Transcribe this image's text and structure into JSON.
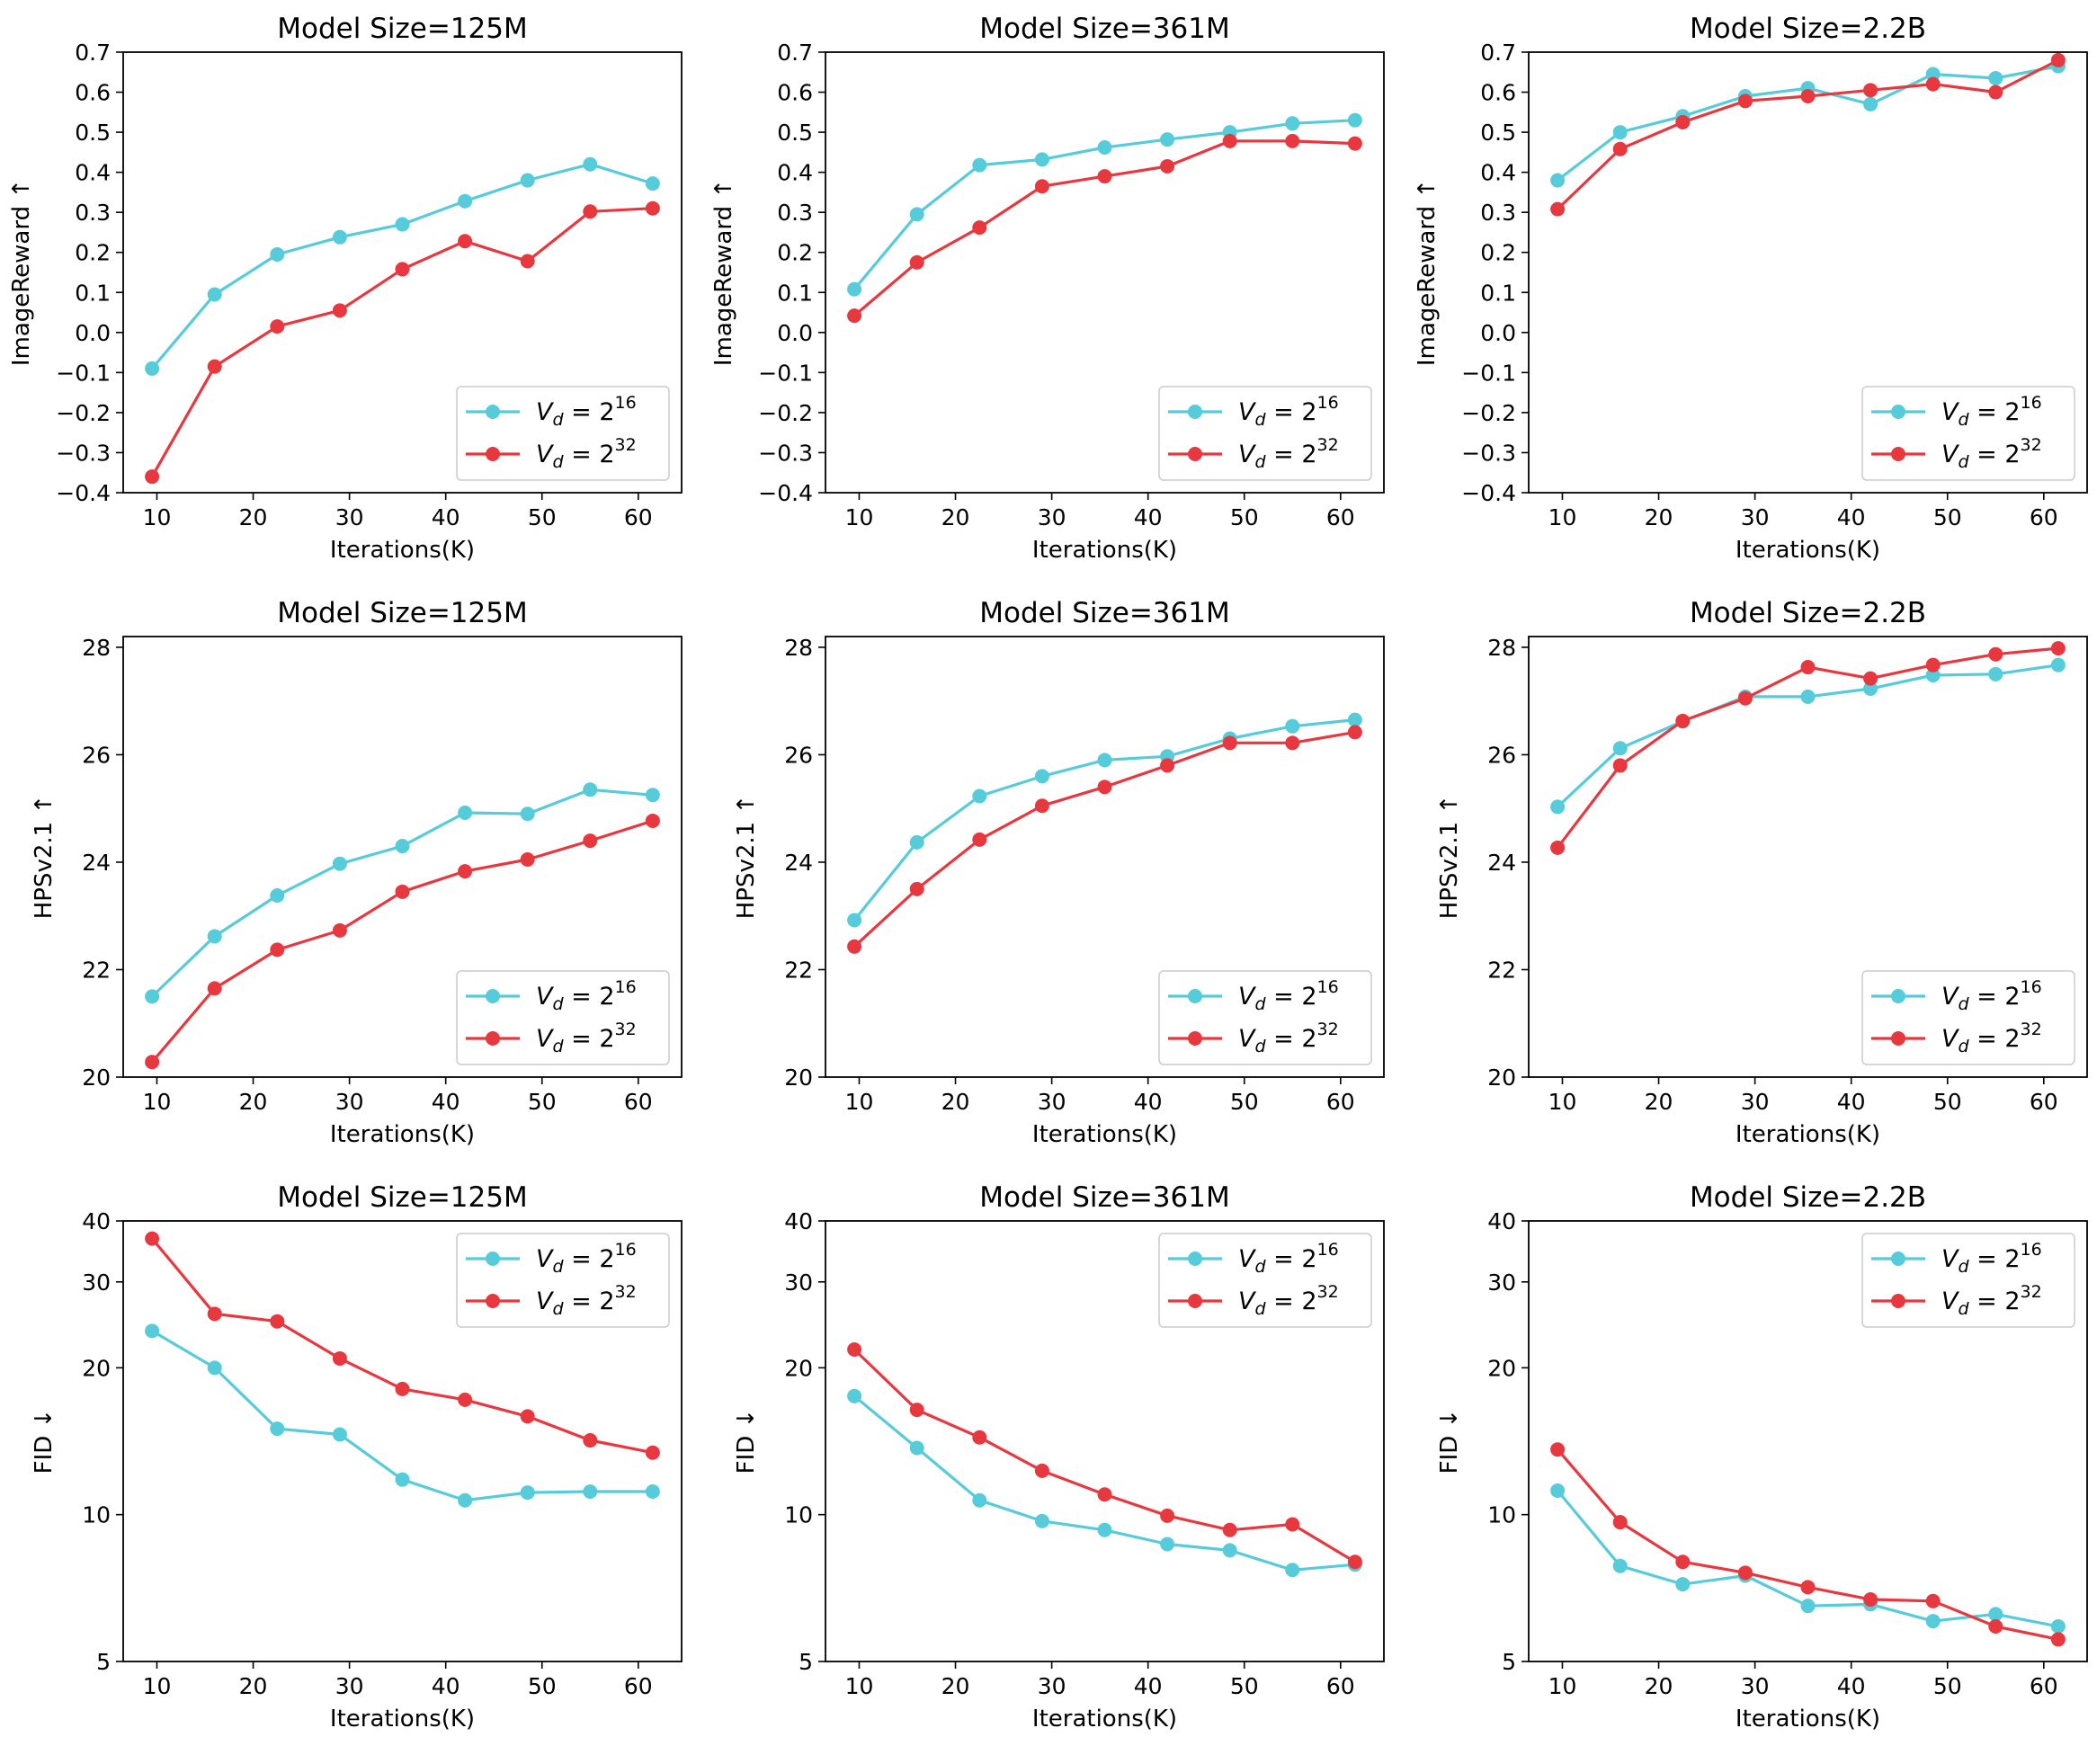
{
  "colors": {
    "cyan": "#56cbd9",
    "red": "#e8383f"
  },
  "chart_data": [
    {
      "type": "line",
      "row": 0,
      "col": 0,
      "title": "Model Size=125M",
      "xlabel": "Iterations(K)",
      "ylabel": "ImageReward ↑",
      "yscale": "linear",
      "ylim": [
        -0.4,
        0.7
      ],
      "xlim": [
        6.5,
        64.5
      ],
      "xticks": [
        10,
        20,
        30,
        40,
        50,
        60
      ],
      "yticks": [
        -0.4,
        -0.3,
        -0.2,
        -0.1,
        0.0,
        0.1,
        0.2,
        0.3,
        0.4,
        0.5,
        0.6,
        0.7
      ],
      "ytick_labels": [
        "−0.4",
        "−0.3",
        "−0.2",
        "−0.1",
        "0.0",
        "0.1",
        "0.2",
        "0.3",
        "0.4",
        "0.5",
        "0.6",
        "0.7"
      ],
      "legend_loc": "lower-right",
      "x": [
        9.5,
        16,
        22.5,
        29,
        35.5,
        42,
        48.5,
        55,
        61.5
      ],
      "series": [
        {
          "name": "V_d = 2^16",
          "color": "#56cbd9",
          "values": [
            -0.09,
            0.095,
            0.195,
            0.238,
            0.27,
            0.328,
            0.38,
            0.42,
            0.372
          ]
        },
        {
          "name": "V_d = 2^32",
          "color": "#e8383f",
          "values": [
            -0.36,
            -0.085,
            0.015,
            0.055,
            0.158,
            0.228,
            0.178,
            0.302,
            0.31
          ]
        }
      ]
    },
    {
      "type": "line",
      "row": 0,
      "col": 1,
      "title": "Model Size=361M",
      "xlabel": "Iterations(K)",
      "ylabel": "ImageReward ↑",
      "yscale": "linear",
      "ylim": [
        -0.4,
        0.7
      ],
      "xlim": [
        6.5,
        64.5
      ],
      "xticks": [
        10,
        20,
        30,
        40,
        50,
        60
      ],
      "yticks": [
        -0.4,
        -0.3,
        -0.2,
        -0.1,
        0.0,
        0.1,
        0.2,
        0.3,
        0.4,
        0.5,
        0.6,
        0.7
      ],
      "ytick_labels": [
        "−0.4",
        "−0.3",
        "−0.2",
        "−0.1",
        "0.0",
        "0.1",
        "0.2",
        "0.3",
        "0.4",
        "0.5",
        "0.6",
        "0.7"
      ],
      "legend_loc": "lower-right",
      "x": [
        9.5,
        16,
        22.5,
        29,
        35.5,
        42,
        48.5,
        55,
        61.5
      ],
      "series": [
        {
          "name": "V_d = 2^16",
          "color": "#56cbd9",
          "values": [
            0.108,
            0.295,
            0.418,
            0.432,
            0.462,
            0.482,
            0.5,
            0.522,
            0.53
          ]
        },
        {
          "name": "V_d = 2^32",
          "color": "#e8383f",
          "values": [
            0.042,
            0.175,
            0.262,
            0.365,
            0.39,
            0.415,
            0.478,
            0.478,
            0.472
          ]
        }
      ]
    },
    {
      "type": "line",
      "row": 0,
      "col": 2,
      "title": "Model Size=2.2B",
      "xlabel": "Iterations(K)",
      "ylabel": "ImageReward ↑",
      "yscale": "linear",
      "ylim": [
        -0.4,
        0.7
      ],
      "xlim": [
        6.5,
        64.5
      ],
      "xticks": [
        10,
        20,
        30,
        40,
        50,
        60
      ],
      "yticks": [
        -0.4,
        -0.3,
        -0.2,
        -0.1,
        0.0,
        0.1,
        0.2,
        0.3,
        0.4,
        0.5,
        0.6,
        0.7
      ],
      "ytick_labels": [
        "−0.4",
        "−0.3",
        "−0.2",
        "−0.1",
        "0.0",
        "0.1",
        "0.2",
        "0.3",
        "0.4",
        "0.5",
        "0.6",
        "0.7"
      ],
      "legend_loc": "lower-right",
      "x": [
        9.5,
        16,
        22.5,
        29,
        35.5,
        42,
        48.5,
        55,
        61.5
      ],
      "series": [
        {
          "name": "V_d = 2^16",
          "color": "#56cbd9",
          "values": [
            0.38,
            0.5,
            0.54,
            0.59,
            0.61,
            0.57,
            0.645,
            0.635,
            0.665
          ]
        },
        {
          "name": "V_d = 2^32",
          "color": "#e8383f",
          "values": [
            0.308,
            0.458,
            0.525,
            0.578,
            0.59,
            0.605,
            0.62,
            0.6,
            0.68
          ]
        }
      ]
    },
    {
      "type": "line",
      "row": 1,
      "col": 0,
      "title": "Model Size=125M",
      "xlabel": "Iterations(K)",
      "ylabel": "HPSv2.1 ↑",
      "yscale": "linear",
      "ylim": [
        20,
        28.2
      ],
      "xlim": [
        6.5,
        64.5
      ],
      "xticks": [
        10,
        20,
        30,
        40,
        50,
        60
      ],
      "yticks": [
        20,
        22,
        24,
        26,
        28
      ],
      "ytick_labels": [
        "20",
        "22",
        "24",
        "26",
        "28"
      ],
      "legend_loc": "lower-right",
      "x": [
        9.5,
        16,
        22.5,
        29,
        35.5,
        42,
        48.5,
        55,
        61.5
      ],
      "series": [
        {
          "name": "V_d = 2^16",
          "color": "#56cbd9",
          "values": [
            21.5,
            22.62,
            23.38,
            23.97,
            24.3,
            24.92,
            24.9,
            25.35,
            25.25
          ]
        },
        {
          "name": "V_d = 2^32",
          "color": "#e8383f",
          "values": [
            20.28,
            21.65,
            22.37,
            22.73,
            23.45,
            23.83,
            24.05,
            24.4,
            24.77
          ]
        }
      ]
    },
    {
      "type": "line",
      "row": 1,
      "col": 1,
      "title": "Model Size=361M",
      "xlabel": "Iterations(K)",
      "ylabel": "HPSv2.1 ↑",
      "yscale": "linear",
      "ylim": [
        20,
        28.2
      ],
      "xlim": [
        6.5,
        64.5
      ],
      "xticks": [
        10,
        20,
        30,
        40,
        50,
        60
      ],
      "yticks": [
        20,
        22,
        24,
        26,
        28
      ],
      "ytick_labels": [
        "20",
        "22",
        "24",
        "26",
        "28"
      ],
      "legend_loc": "lower-right",
      "x": [
        9.5,
        16,
        22.5,
        29,
        35.5,
        42,
        48.5,
        55,
        61.5
      ],
      "series": [
        {
          "name": "V_d = 2^16",
          "color": "#56cbd9",
          "values": [
            22.92,
            24.37,
            25.23,
            25.6,
            25.9,
            25.97,
            26.3,
            26.53,
            26.65
          ]
        },
        {
          "name": "V_d = 2^32",
          "color": "#e8383f",
          "values": [
            22.43,
            23.5,
            24.42,
            25.05,
            25.4,
            25.8,
            26.22,
            26.22,
            26.42
          ]
        }
      ]
    },
    {
      "type": "line",
      "row": 1,
      "col": 2,
      "title": "Model Size=2.2B",
      "xlabel": "Iterations(K)",
      "ylabel": "HPSv2.1 ↑",
      "yscale": "linear",
      "ylim": [
        20,
        28.2
      ],
      "xlim": [
        6.5,
        64.5
      ],
      "xticks": [
        10,
        20,
        30,
        40,
        50,
        60
      ],
      "yticks": [
        20,
        22,
        24,
        26,
        28
      ],
      "ytick_labels": [
        "20",
        "22",
        "24",
        "26",
        "28"
      ],
      "legend_loc": "lower-right",
      "x": [
        9.5,
        16,
        22.5,
        29,
        35.5,
        42,
        48.5,
        55,
        61.5
      ],
      "series": [
        {
          "name": "V_d = 2^16",
          "color": "#56cbd9",
          "values": [
            25.03,
            26.12,
            26.62,
            27.08,
            27.08,
            27.23,
            27.48,
            27.5,
            27.67
          ]
        },
        {
          "name": "V_d = 2^32",
          "color": "#e8383f",
          "values": [
            24.27,
            25.8,
            26.63,
            27.05,
            27.63,
            27.42,
            27.67,
            27.87,
            27.98
          ]
        }
      ]
    },
    {
      "type": "line",
      "row": 2,
      "col": 0,
      "title": "Model Size=125M",
      "xlabel": "Iterations(K)",
      "ylabel": "FID ↓",
      "yscale": "log",
      "ylim": [
        5,
        40
      ],
      "xlim": [
        6.5,
        64.5
      ],
      "xticks": [
        10,
        20,
        30,
        40,
        50,
        60
      ],
      "yticks": [
        5,
        10,
        20,
        30,
        40
      ],
      "ytick_labels": [
        "5",
        "10",
        "20",
        "30",
        "40"
      ],
      "legend_loc": "upper-right",
      "x": [
        9.5,
        16,
        22.5,
        29,
        35.5,
        42,
        48.5,
        55,
        61.5
      ],
      "series": [
        {
          "name": "V_d = 2^16",
          "color": "#56cbd9",
          "values": [
            23.8,
            20.0,
            15.0,
            14.6,
            11.8,
            10.7,
            11.1,
            11.15,
            11.15
          ]
        },
        {
          "name": "V_d = 2^32",
          "color": "#e8383f",
          "values": [
            36.8,
            25.8,
            24.9,
            20.9,
            18.1,
            17.2,
            15.9,
            14.2,
            13.4
          ]
        }
      ]
    },
    {
      "type": "line",
      "row": 2,
      "col": 1,
      "title": "Model Size=361M",
      "xlabel": "Iterations(K)",
      "ylabel": "FID ↓",
      "yscale": "log",
      "ylim": [
        5,
        40
      ],
      "xlim": [
        6.5,
        64.5
      ],
      "xticks": [
        10,
        20,
        30,
        40,
        50,
        60
      ],
      "yticks": [
        5,
        10,
        20,
        30,
        40
      ],
      "ytick_labels": [
        "5",
        "10",
        "20",
        "30",
        "40"
      ],
      "legend_loc": "upper-right",
      "x": [
        9.5,
        16,
        22.5,
        29,
        35.5,
        42,
        48.5,
        55,
        61.5
      ],
      "series": [
        {
          "name": "V_d = 2^16",
          "color": "#56cbd9",
          "values": [
            17.5,
            13.7,
            10.7,
            9.7,
            9.3,
            8.7,
            8.45,
            7.7,
            7.9
          ]
        },
        {
          "name": "V_d = 2^32",
          "color": "#e8383f",
          "values": [
            21.8,
            16.4,
            14.4,
            12.3,
            11.0,
            9.95,
            9.3,
            9.55,
            8.0
          ]
        }
      ]
    },
    {
      "type": "line",
      "row": 2,
      "col": 2,
      "title": "Model Size=2.2B",
      "xlabel": "Iterations(K)",
      "ylabel": "FID ↓",
      "yscale": "log",
      "ylim": [
        5,
        40
      ],
      "xlim": [
        6.5,
        64.5
      ],
      "xticks": [
        10,
        20,
        30,
        40,
        50,
        60
      ],
      "yticks": [
        5,
        10,
        20,
        30,
        40
      ],
      "ytick_labels": [
        "5",
        "10",
        "20",
        "30",
        "40"
      ],
      "legend_loc": "upper-right",
      "x": [
        9.5,
        16,
        22.5,
        29,
        35.5,
        42,
        48.5,
        55,
        61.5
      ],
      "series": [
        {
          "name": "V_d = 2^16",
          "color": "#56cbd9",
          "values": [
            11.2,
            7.85,
            7.2,
            7.5,
            6.5,
            6.55,
            6.05,
            6.25,
            5.9
          ]
        },
        {
          "name": "V_d = 2^32",
          "color": "#e8383f",
          "values": [
            13.6,
            9.65,
            8.0,
            7.6,
            7.1,
            6.7,
            6.65,
            5.9,
            5.55
          ]
        }
      ]
    }
  ]
}
